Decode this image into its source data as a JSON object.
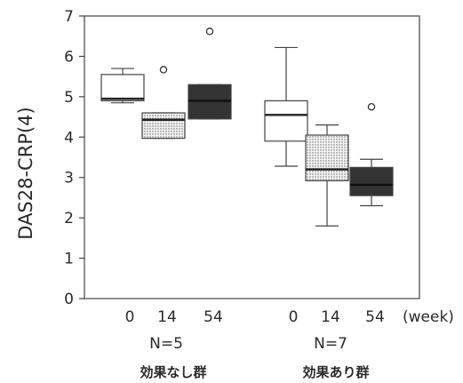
{
  "chart_data": {
    "type": "box",
    "ylabel": "DAS28-CRP(4)",
    "ylim": [
      0,
      7
    ],
    "yticks": [
      0,
      1,
      2,
      3,
      4,
      5,
      6,
      7
    ],
    "x_unit": "(week)",
    "groups": [
      {
        "n_label": "N=5",
        "label": "効果なし群",
        "boxes": [
          {
            "week": "0",
            "fill": "white",
            "q1": 4.9,
            "median": 4.95,
            "q3": 5.55,
            "whisker_low": 4.85,
            "whisker_high": 5.7,
            "outliers": []
          },
          {
            "week": "14",
            "fill": "dotted",
            "q1": 3.97,
            "median": 4.43,
            "q3": 4.6,
            "whisker_low": 3.97,
            "whisker_high": 4.6,
            "outliers": [
              5.67
            ]
          },
          {
            "week": "54",
            "fill": "black",
            "q1": 4.45,
            "median": 4.9,
            "q3": 5.3,
            "whisker_low": 4.45,
            "whisker_high": 5.3,
            "outliers": [
              6.62
            ]
          }
        ]
      },
      {
        "n_label": "N=7",
        "label": "効果あり群",
        "boxes": [
          {
            "week": "0",
            "fill": "white",
            "q1": 3.9,
            "median": 4.55,
            "q3": 4.9,
            "whisker_low": 3.28,
            "whisker_high": 6.22,
            "outliers": []
          },
          {
            "week": "14",
            "fill": "dotted",
            "q1": 2.92,
            "median": 3.2,
            "q3": 4.05,
            "whisker_low": 1.8,
            "whisker_high": 4.3,
            "outliers": []
          },
          {
            "week": "54",
            "fill": "black",
            "q1": 2.55,
            "median": 2.82,
            "q3": 3.25,
            "whisker_low": 2.3,
            "whisker_high": 3.45,
            "outliers": [
              4.75
            ]
          }
        ]
      }
    ]
  }
}
